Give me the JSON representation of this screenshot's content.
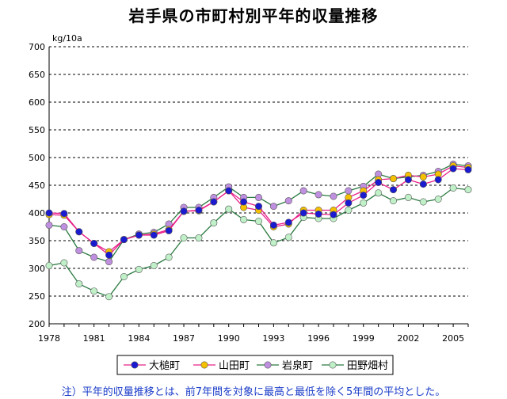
{
  "chart_data": {
    "type": "line",
    "title": "岩手県の市町村別平年的収量推移",
    "ylabel": "kg/10a",
    "xlabel": "",
    "ylim": [
      200,
      700
    ],
    "yticks": [
      200,
      250,
      300,
      350,
      400,
      450,
      500,
      550,
      600,
      650,
      700
    ],
    "xlim": [
      1978,
      2006
    ],
    "xticks": [
      1978,
      1981,
      1984,
      1987,
      1990,
      1993,
      1996,
      1999,
      2002,
      2005
    ],
    "x": [
      1978,
      1979,
      1980,
      1981,
      1982,
      1983,
      1984,
      1985,
      1986,
      1987,
      1988,
      1989,
      1990,
      1991,
      1992,
      1993,
      1994,
      1995,
      1996,
      1997,
      1998,
      1999,
      2000,
      2001,
      2002,
      2003,
      2004,
      2005,
      2006
    ],
    "grid": true,
    "legend": "bottom",
    "series": [
      {
        "name": "大槌町",
        "line_color": "#e8208a",
        "marker": "#1a1ad0",
        "values": [
          400,
          399,
          366,
          345,
          324,
          352,
          360,
          360,
          368,
          403,
          405,
          420,
          440,
          420,
          412,
          378,
          383,
          400,
          398,
          397,
          418,
          432,
          455,
          442,
          460,
          452,
          460,
          480,
          478
        ]
      },
      {
        "name": "山田町",
        "line_color": "#e8208a",
        "marker": "#f5c000",
        "values": [
          397,
          396,
          366,
          345,
          330,
          352,
          360,
          362,
          370,
          403,
          404,
          420,
          440,
          410,
          405,
          375,
          380,
          405,
          405,
          405,
          428,
          440,
          460,
          462,
          468,
          465,
          470,
          485,
          482
        ]
      },
      {
        "name": "岩泉町",
        "line_color": "#2a7a40",
        "marker": "#c090e0",
        "values": [
          378,
          375,
          332,
          320,
          312,
          352,
          362,
          365,
          380,
          410,
          410,
          428,
          447,
          428,
          428,
          412,
          422,
          440,
          433,
          430,
          440,
          448,
          470,
          462,
          465,
          468,
          475,
          488,
          485
        ]
      },
      {
        "name": "田野畑村",
        "line_color": "#2a7a40",
        "marker": "#c0f0c8",
        "values": [
          305,
          310,
          272,
          259,
          249,
          285,
          298,
          305,
          320,
          355,
          355,
          382,
          407,
          388,
          385,
          346,
          356,
          392,
          390,
          390,
          405,
          418,
          436,
          422,
          428,
          420,
          425,
          445,
          442
        ]
      }
    ]
  },
  "note": "注）平年的収量推移とは、前7年間を対象に最高と最低を除く5年間の平均とした。"
}
